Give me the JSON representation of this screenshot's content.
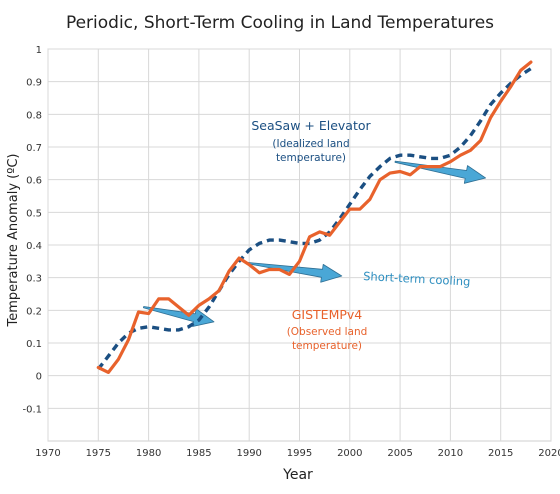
{
  "chart_data": {
    "type": "line",
    "title": "Periodic, Short-Term Cooling in Land Temperatures",
    "xlabel": "Year",
    "ylabel": "Temperature Anomaly (ºC)",
    "xlim": [
      1970,
      2020
    ],
    "ylim": [
      -0.2,
      1.0
    ],
    "grid": true,
    "x_ticks": [
      "1970",
      "1975",
      "1980",
      "1985",
      "1990",
      "1995",
      "2000",
      "2005",
      "2010",
      "2015",
      "2020"
    ],
    "y_ticks": [
      "-0.1",
      "0",
      "0.1",
      "0.2",
      "0.3",
      "0.4",
      "0.5",
      "0.6",
      "0.7",
      "0.8",
      "0.9",
      "1"
    ],
    "series": [
      {
        "name": "GISTEMPv4",
        "style": "solid",
        "color": "#e8622c",
        "x": [
          1975,
          1976,
          1977,
          1978,
          1979,
          1980,
          1981,
          1982,
          1983,
          1984,
          1985,
          1986,
          1987,
          1988,
          1989,
          1990,
          1991,
          1992,
          1993,
          1994,
          1995,
          1996,
          1997,
          1998,
          1999,
          2000,
          2001,
          2002,
          2003,
          2004,
          2005,
          2006,
          2007,
          2008,
          2009,
          2010,
          2011,
          2012,
          2013,
          2014,
          2015,
          2016,
          2017,
          2018
        ],
        "y": [
          0.025,
          0.01,
          0.05,
          0.11,
          0.195,
          0.19,
          0.235,
          0.235,
          0.21,
          0.185,
          0.215,
          0.235,
          0.26,
          0.32,
          0.36,
          0.34,
          0.315,
          0.325,
          0.325,
          0.31,
          0.35,
          0.425,
          0.44,
          0.43,
          0.47,
          0.51,
          0.51,
          0.54,
          0.6,
          0.62,
          0.625,
          0.615,
          0.64,
          0.64,
          0.64,
          0.655,
          0.675,
          0.69,
          0.72,
          0.79,
          0.84,
          0.885,
          0.935,
          0.96
        ]
      },
      {
        "name": "SeaSaw + Elevator",
        "style": "dashed",
        "color": "#1b4f82",
        "x": [
          1975,
          1976,
          1977,
          1978,
          1979,
          1980,
          1981,
          1982,
          1983,
          1984,
          1985,
          1986,
          1987,
          1988,
          1989,
          1990,
          1991,
          1992,
          1993,
          1994,
          1995,
          1996,
          1997,
          1998,
          1999,
          2000,
          2001,
          2002,
          2003,
          2004,
          2005,
          2006,
          2007,
          2008,
          2009,
          2010,
          2011,
          2012,
          2013,
          2014,
          2015,
          2016,
          2017,
          2018
        ],
        "y": [
          0.02,
          0.06,
          0.1,
          0.13,
          0.145,
          0.15,
          0.145,
          0.14,
          0.14,
          0.15,
          0.17,
          0.21,
          0.26,
          0.31,
          0.35,
          0.385,
          0.405,
          0.415,
          0.415,
          0.41,
          0.405,
          0.405,
          0.415,
          0.44,
          0.48,
          0.525,
          0.57,
          0.61,
          0.64,
          0.665,
          0.675,
          0.675,
          0.67,
          0.665,
          0.665,
          0.675,
          0.7,
          0.735,
          0.78,
          0.83,
          0.865,
          0.895,
          0.92,
          0.94
        ]
      }
    ],
    "annotations": {
      "seasaw_label": [
        "SeaSaw + Elevator"
      ],
      "seasaw_sublabel": [
        "(Idealized land",
        "temperature)"
      ],
      "cooling_label": "Short-term cooling",
      "gistemp_label": [
        "GISTEMPv4"
      ],
      "gistemp_sublabel": [
        "(Observed land",
        "temperature)"
      ]
    },
    "arrows": [
      {
        "from": [
          1979.5,
          0.21
        ],
        "to": [
          1986.5,
          0.165
        ]
      },
      {
        "from": [
          1989.8,
          0.345
        ],
        "to": [
          1999.2,
          0.305
        ]
      },
      {
        "from": [
          2004.5,
          0.655
        ],
        "to": [
          2013.5,
          0.605
        ]
      }
    ],
    "colors": {
      "observed": "#e8622c",
      "idealized": "#1b4f82",
      "cooling_arrow": "#4aa7d6",
      "grid": "#d8d8d8"
    }
  }
}
